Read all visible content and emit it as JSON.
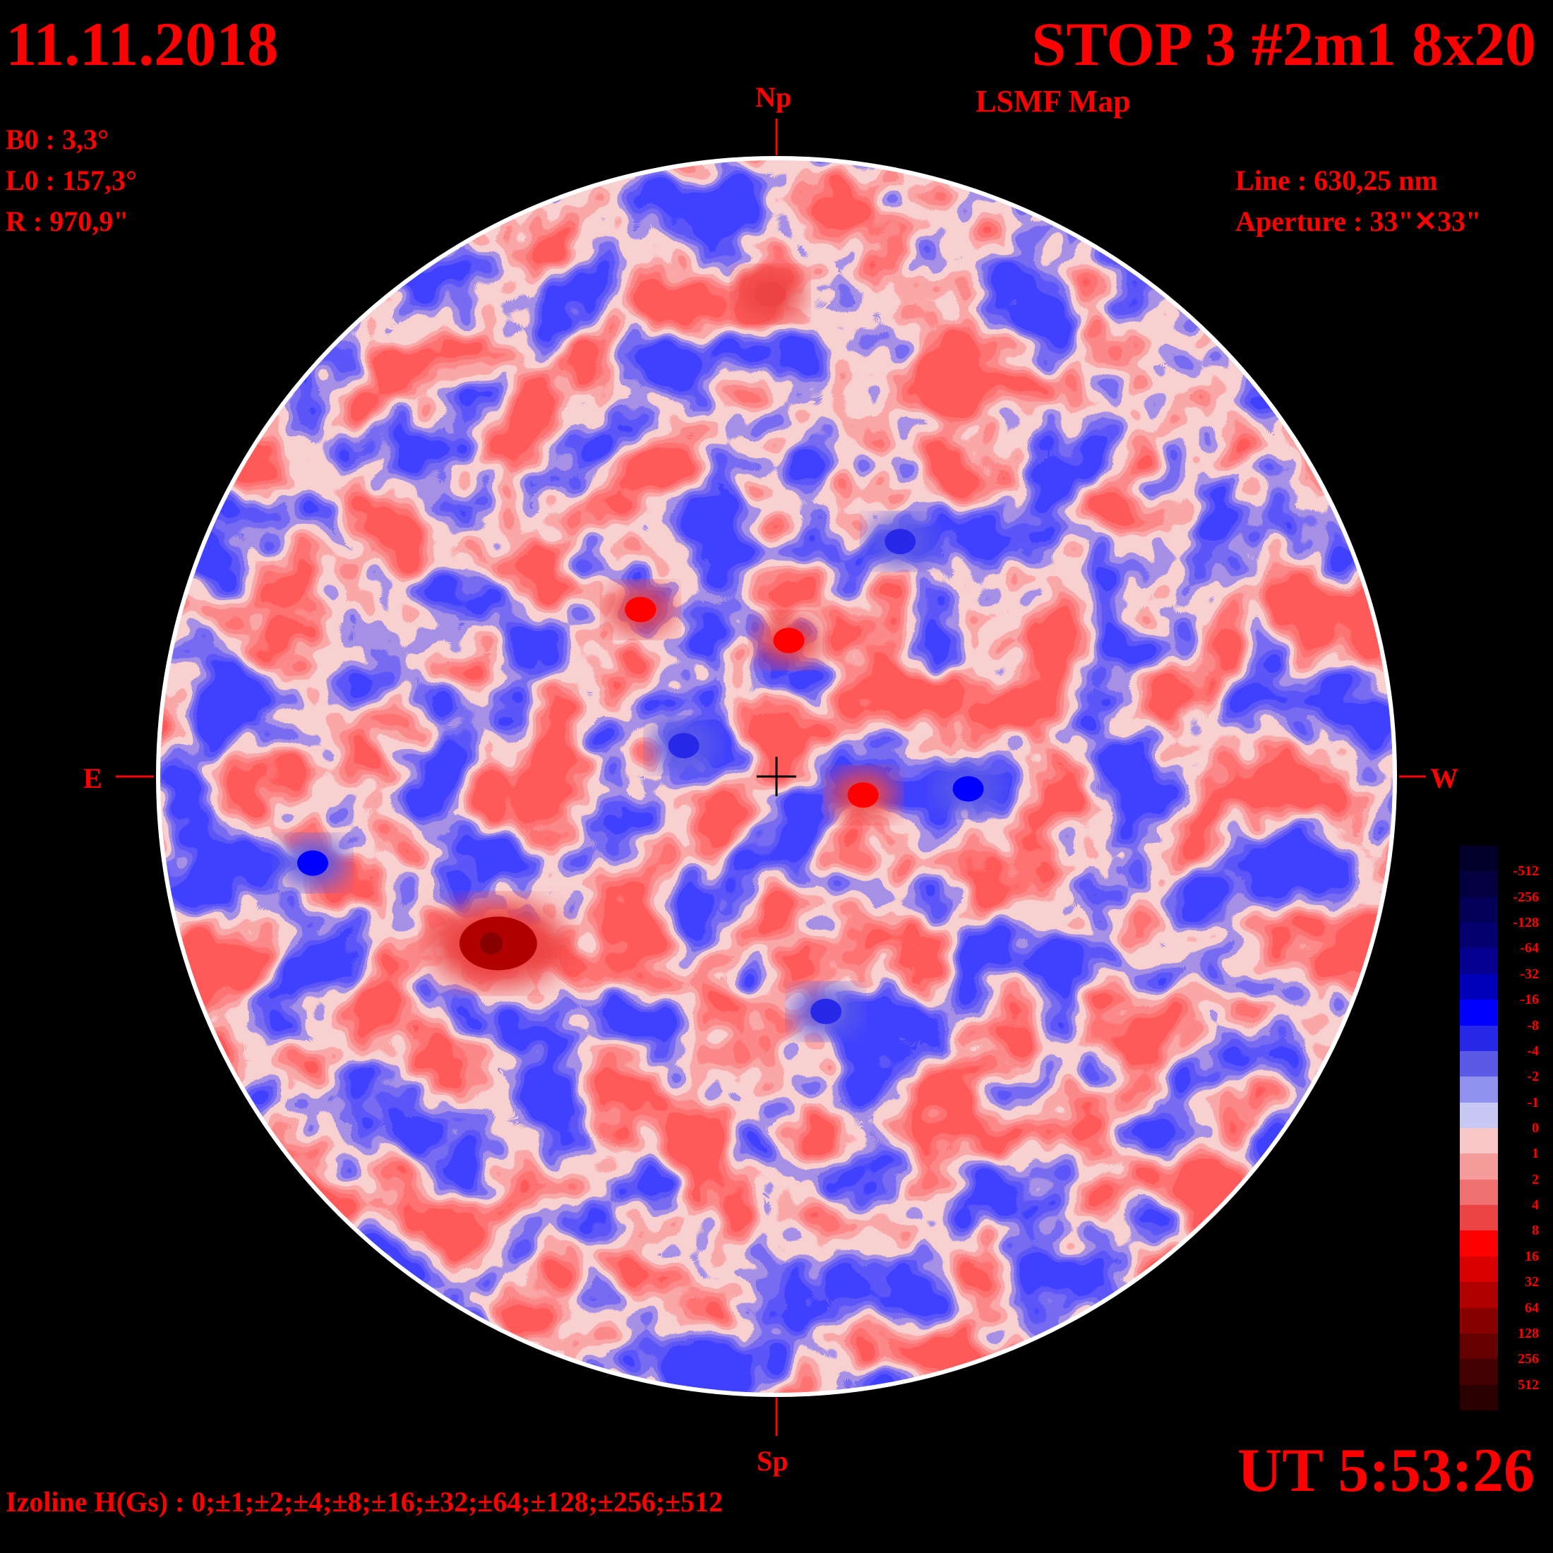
{
  "header": {
    "date": "11.11.2018",
    "title": "STOP 3 #2m1 8x20",
    "subtitle": "LSMF  Map"
  },
  "params": {
    "b0": "B0 : 3,3°",
    "l0": "L0 : 157,3°",
    "r": "R  : 970,9\"",
    "line": "Line :  630,25 nm",
    "aperture": "Aperture : 33\"✕33\""
  },
  "directions": {
    "north": "Np",
    "south": "Sp",
    "east": "E",
    "west": "W"
  },
  "time": "UT 5:53:26",
  "isolines": "Izoline H(Gs) : 0;±1;±2;±4;±8;±16;±32;±64;±128;±256;±512",
  "legend": {
    "levels": [
      "-512",
      "-256",
      "-128",
      "-64",
      "-32",
      "-16",
      "-8",
      "-4",
      "-2",
      "-1",
      "0",
      "1",
      "2",
      "4",
      "8",
      "16",
      "32",
      "64",
      "128",
      "256",
      "512"
    ],
    "colors": [
      "#02002a",
      "#030040",
      "#040058",
      "#050070",
      "#060090",
      "#0000b8",
      "#0000ff",
      "#2828e8",
      "#5a5ae6",
      "#9090ee",
      "#c8c8f4",
      "#f8c8c8",
      "#f49c9c",
      "#ef7070",
      "#ec4444",
      "#ff0000",
      "#d80000",
      "#b00000",
      "#880000",
      "#640000",
      "#440000",
      "#2a0000"
    ]
  },
  "disk_fields": {
    "positive_centers": [
      {
        "name": "main-red-cluster",
        "lon": -0.45,
        "lat": -0.27,
        "strength": 64
      },
      {
        "name": "red-spot-center",
        "lon": 0.02,
        "lat": 0.22,
        "strength": 16
      },
      {
        "name": "red-spot-left",
        "lon": -0.22,
        "lat": 0.27,
        "strength": 16
      },
      {
        "name": "red-spot-right",
        "lon": 0.14,
        "lat": -0.03,
        "strength": 16
      },
      {
        "name": "red-spot-top",
        "lon": -0.01,
        "lat": 0.78,
        "strength": 8
      }
    ],
    "negative_centers": [
      {
        "name": "blue-west-bright",
        "lon": -0.75,
        "lat": -0.14,
        "strength": -16
      },
      {
        "name": "blue-east-bright",
        "lon": 0.31,
        "lat": -0.02,
        "strength": -16
      },
      {
        "name": "blue-north-band",
        "lon": 0.2,
        "lat": 0.38,
        "strength": -8
      },
      {
        "name": "blue-south",
        "lon": 0.08,
        "lat": -0.38,
        "strength": -8
      },
      {
        "name": "blue-west-band",
        "lon": -0.15,
        "lat": 0.05,
        "strength": -8
      }
    ]
  }
}
